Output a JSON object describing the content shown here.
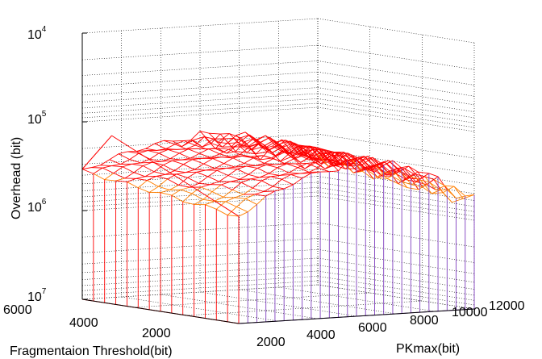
{
  "chart_data": {
    "type": "surface3d",
    "zlabel": "Overhead (bit)",
    "ylabel": "Fragmentaion Threshold(bit)",
    "xlabel": "PKmax(bit)",
    "z_scale": "log",
    "z_direction": "reversed",
    "z_ticks": [
      {
        "base": "10",
        "exp": "4",
        "value": 10000
      },
      {
        "base": "10",
        "exp": "5",
        "value": 100000
      },
      {
        "base": "10",
        "exp": "6",
        "value": 1000000
      },
      {
        "base": "10",
        "exp": "7",
        "value": 10000000
      }
    ],
    "x_ticks": [
      "2000",
      "4000",
      "6000",
      "8000",
      "10000",
      "12000"
    ],
    "y_ticks": [
      "6000",
      "4000",
      "2000"
    ],
    "grid": true,
    "colormap": "hsv",
    "x_range": [
      0,
      12000
    ],
    "y_range": [
      0,
      6000
    ],
    "ridge": {
      "x": 0,
      "y": 6000,
      "z_top": 150000
    },
    "surface_rows": [
      {
        "y": 6000,
        "z_top": 1200000,
        "z_bottom": 10000000,
        "color": "#ff0000"
      },
      {
        "y": 4000,
        "z_top": 800000,
        "z_bottom": 10000000,
        "color": "#ff0000"
      },
      {
        "y": 2000,
        "z_top": 400000,
        "z_bottom": 10000000,
        "color": "#ff0000"
      },
      {
        "y": 0,
        "z_top": 200000,
        "z_bottom": 10000000,
        "color": "#ff0000"
      }
    ],
    "front_face_series": [
      {
        "color": "#ff0000",
        "z": 10000000
      },
      {
        "color": "#7f3fbf",
        "z": 4000000
      },
      {
        "color": "#3f3fff",
        "z": 2500000
      },
      {
        "color": "#7fff00",
        "z": 1800000
      },
      {
        "color": "#ffff00",
        "z": 1200000
      },
      {
        "color": "#ff7f00",
        "z": 700000
      },
      {
        "color": "#ff0000",
        "z": 200000
      }
    ]
  }
}
